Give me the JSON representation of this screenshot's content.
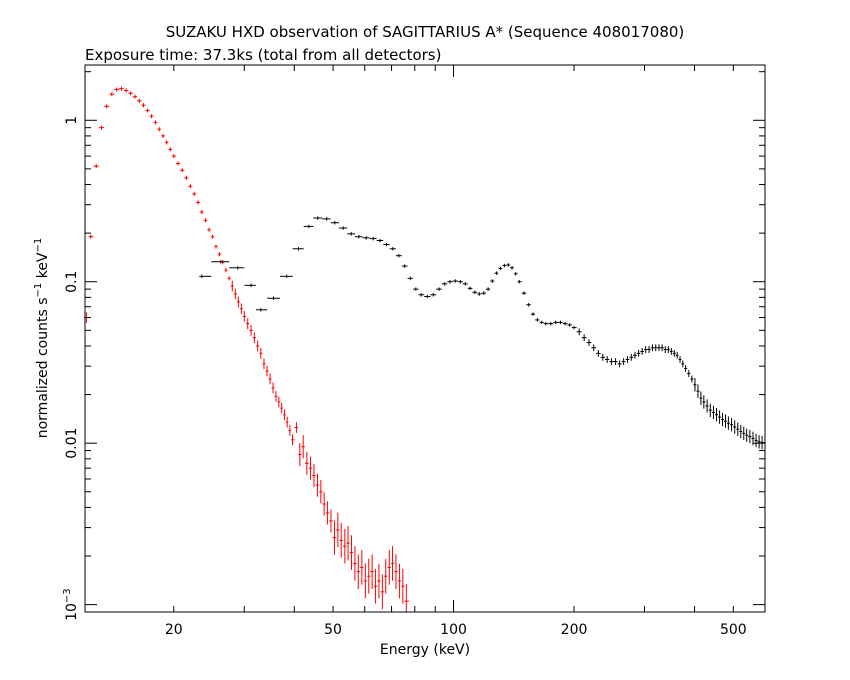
{
  "chart_data": {
    "type": "scatter",
    "title": "SUZAKU HXD observation of SAGITTARIUS A* (Sequence 408017080)",
    "subtitle": "Exposure time: 37.3ks (total from all detectors)",
    "xlabel": "Energy (keV)",
    "ylabel": {
      "prefix": "normalized counts s",
      "sup1": "−1",
      "mid": " keV",
      "sup2": "−1"
    },
    "x_scale": "log",
    "y_scale": "log",
    "xlim": [
      12,
      600
    ],
    "ylim": [
      0.0009,
      2.2
    ],
    "x_ticks": [
      {
        "value": 20,
        "label": "20"
      },
      {
        "value": 50,
        "label": "50"
      },
      {
        "value": 100,
        "label": "100"
      },
      {
        "value": 200,
        "label": "200"
      },
      {
        "value": 500,
        "label": "500"
      }
    ],
    "y_ticks": [
      {
        "value": 1,
        "label": "1"
      },
      {
        "value": 0.1,
        "label": "0.1"
      },
      {
        "value": 0.01,
        "label": "0.01"
      },
      {
        "value": 0.001,
        "label": "10",
        "sup": "−3"
      }
    ],
    "grid": false,
    "legend": "none",
    "series": [
      {
        "color": "#ff0000",
        "points": [
          [
            12.1,
            0.06
          ],
          [
            12.4,
            0.19
          ],
          [
            12.8,
            0.52
          ],
          [
            13.2,
            0.9
          ],
          [
            13.6,
            1.22
          ],
          [
            14.0,
            1.45
          ],
          [
            14.4,
            1.55
          ],
          [
            14.8,
            1.57
          ],
          [
            15.2,
            1.53
          ],
          [
            15.6,
            1.47
          ],
          [
            16.0,
            1.4
          ],
          [
            16.4,
            1.32
          ],
          [
            16.8,
            1.24
          ],
          [
            17.2,
            1.15
          ],
          [
            17.6,
            1.06
          ],
          [
            18.0,
            0.97
          ],
          [
            18.4,
            0.88
          ],
          [
            18.8,
            0.8
          ],
          [
            19.2,
            0.73
          ],
          [
            19.6,
            0.66
          ],
          [
            20.0,
            0.6
          ],
          [
            20.5,
            0.54
          ],
          [
            21.0,
            0.49
          ],
          [
            21.5,
            0.44
          ],
          [
            22.0,
            0.39
          ],
          [
            22.5,
            0.35
          ],
          [
            23.0,
            0.31
          ],
          [
            23.5,
            0.27
          ],
          [
            24.0,
            0.24
          ],
          [
            24.5,
            0.21
          ],
          [
            25.0,
            0.19
          ],
          [
            25.5,
            0.165
          ],
          [
            26.0,
            0.148
          ],
          [
            26.5,
            0.132
          ],
          [
            27.0,
            0.118
          ],
          [
            27.5,
            0.105
          ],
          [
            28.0,
            0.094
          ],
          [
            28.5,
            0.084
          ],
          [
            29.0,
            0.075
          ],
          [
            29.5,
            0.068
          ],
          [
            30.0,
            0.061
          ],
          [
            30.6,
            0.055
          ],
          [
            31.2,
            0.05
          ],
          [
            31.8,
            0.045
          ],
          [
            32.4,
            0.04
          ],
          [
            33.0,
            0.036
          ],
          [
            33.6,
            0.031
          ],
          [
            34.2,
            0.028
          ],
          [
            34.8,
            0.025
          ],
          [
            35.4,
            0.022
          ],
          [
            36.0,
            0.0195
          ],
          [
            36.6,
            0.018
          ],
          [
            37.2,
            0.0165
          ],
          [
            37.8,
            0.015
          ],
          [
            38.4,
            0.0135
          ],
          [
            39.0,
            0.012
          ],
          [
            39.6,
            0.0105
          ],
          [
            40.5,
            0.0125
          ],
          [
            41.3,
            0.0085
          ],
          [
            42.1,
            0.0095
          ],
          [
            43.0,
            0.0075
          ],
          [
            43.9,
            0.007
          ],
          [
            44.8,
            0.0063
          ],
          [
            45.7,
            0.0055
          ],
          [
            46.6,
            0.005
          ],
          [
            47.5,
            0.0042
          ],
          [
            48.4,
            0.0037
          ],
          [
            49.4,
            0.0033
          ],
          [
            50.4,
            0.0026
          ],
          [
            51.4,
            0.0029
          ],
          [
            52.4,
            0.0025
          ],
          [
            53.5,
            0.0023
          ],
          [
            54.5,
            0.0024
          ],
          [
            55.6,
            0.0021
          ],
          [
            56.7,
            0.0018
          ],
          [
            57.8,
            0.0016
          ],
          [
            59.0,
            0.0017
          ],
          [
            60.2,
            0.0014
          ],
          [
            61.4,
            0.0015
          ],
          [
            62.6,
            0.0016
          ],
          [
            63.8,
            0.0013
          ],
          [
            65.1,
            0.0014
          ],
          [
            66.4,
            0.0012
          ],
          [
            67.7,
            0.0015
          ],
          [
            69.1,
            0.0017
          ],
          [
            70.4,
            0.0018
          ],
          [
            71.8,
            0.0016
          ],
          [
            73.3,
            0.0014
          ],
          [
            74.7,
            0.0013
          ],
          [
            76.2,
            0.00105
          ]
        ]
      },
      {
        "color": "#000000",
        "points": [
          [
            23.5,
            0.108
          ],
          [
            26.2,
            0.133
          ],
          [
            28.9,
            0.122
          ],
          [
            31.2,
            0.095
          ],
          [
            33.0,
            0.067
          ],
          [
            35.5,
            0.079
          ],
          [
            38.3,
            0.108
          ],
          [
            41.0,
            0.16
          ],
          [
            43.5,
            0.22
          ],
          [
            45.8,
            0.248
          ],
          [
            48.2,
            0.245
          ],
          [
            50.5,
            0.232
          ],
          [
            53.0,
            0.215
          ],
          [
            55.5,
            0.198
          ],
          [
            58.0,
            0.19
          ],
          [
            60.5,
            0.187
          ],
          [
            63.0,
            0.185
          ],
          [
            65.5,
            0.18
          ],
          [
            68.0,
            0.17
          ],
          [
            70.5,
            0.16
          ],
          [
            73.0,
            0.145
          ],
          [
            75.5,
            0.125
          ],
          [
            78.0,
            0.105
          ],
          [
            80.5,
            0.09
          ],
          [
            83.0,
            0.083
          ],
          [
            86.0,
            0.081
          ],
          [
            89.0,
            0.083
          ],
          [
            92.0,
            0.09
          ],
          [
            95.0,
            0.097
          ],
          [
            98.0,
            0.1
          ],
          [
            101.0,
            0.101
          ],
          [
            104.0,
            0.1
          ],
          [
            107.0,
            0.097
          ],
          [
            110.0,
            0.091
          ],
          [
            113.0,
            0.086
          ],
          [
            116.0,
            0.084
          ],
          [
            119.0,
            0.085
          ],
          [
            122.0,
            0.09
          ],
          [
            125.0,
            0.101
          ],
          [
            128.0,
            0.113
          ],
          [
            131.0,
            0.121
          ],
          [
            134.0,
            0.126
          ],
          [
            137.0,
            0.127
          ],
          [
            140.0,
            0.122
          ],
          [
            143.0,
            0.112
          ],
          [
            146.0,
            0.1
          ],
          [
            150.0,
            0.085
          ],
          [
            154.0,
            0.072
          ],
          [
            158.0,
            0.063
          ],
          [
            162.0,
            0.058
          ],
          [
            166.0,
            0.056
          ],
          [
            170.0,
            0.055
          ],
          [
            175.0,
            0.055
          ],
          [
            180.0,
            0.056
          ],
          [
            185.0,
            0.056
          ],
          [
            190.0,
            0.055
          ],
          [
            195.0,
            0.054
          ],
          [
            200.0,
            0.052
          ],
          [
            206.0,
            0.049
          ],
          [
            212.0,
            0.045
          ],
          [
            218.0,
            0.042
          ],
          [
            224.0,
            0.039
          ],
          [
            230.0,
            0.036
          ],
          [
            236.0,
            0.034
          ],
          [
            242.0,
            0.033
          ],
          [
            248.0,
            0.032
          ],
          [
            254.0,
            0.032
          ],
          [
            260.0,
            0.031
          ],
          [
            266.0,
            0.032
          ],
          [
            272.0,
            0.033
          ],
          [
            278.0,
            0.034
          ],
          [
            284.0,
            0.035
          ],
          [
            290.0,
            0.036
          ],
          [
            296.0,
            0.037
          ],
          [
            302.0,
            0.038
          ],
          [
            308.0,
            0.038
          ],
          [
            314.0,
            0.039
          ],
          [
            320.0,
            0.039
          ],
          [
            326.0,
            0.039
          ],
          [
            332.0,
            0.039
          ],
          [
            338.0,
            0.038
          ],
          [
            344.0,
            0.038
          ],
          [
            350.0,
            0.037
          ],
          [
            356.0,
            0.036
          ],
          [
            362.0,
            0.035
          ],
          [
            368.0,
            0.033
          ],
          [
            374.0,
            0.031
          ],
          [
            380.0,
            0.029
          ],
          [
            387.0,
            0.027
          ],
          [
            394.0,
            0.025
          ],
          [
            401.0,
            0.023
          ],
          [
            408.0,
            0.021
          ],
          [
            415.0,
            0.019
          ],
          [
            422.0,
            0.018
          ],
          [
            430.0,
            0.017
          ],
          [
            438.0,
            0.016
          ],
          [
            446.0,
            0.0155
          ],
          [
            454.0,
            0.015
          ],
          [
            462.0,
            0.0145
          ],
          [
            470.0,
            0.014
          ],
          [
            478.0,
            0.0137
          ],
          [
            486.0,
            0.0133
          ],
          [
            495.0,
            0.013
          ],
          [
            504.0,
            0.0126
          ],
          [
            513.0,
            0.0122
          ],
          [
            522.0,
            0.0118
          ],
          [
            531.0,
            0.0115
          ],
          [
            540.0,
            0.0112
          ],
          [
            550.0,
            0.011
          ],
          [
            560.0,
            0.0107
          ],
          [
            570.0,
            0.0104
          ],
          [
            580.0,
            0.0102
          ],
          [
            590.0,
            0.0101
          ]
        ]
      }
    ]
  }
}
